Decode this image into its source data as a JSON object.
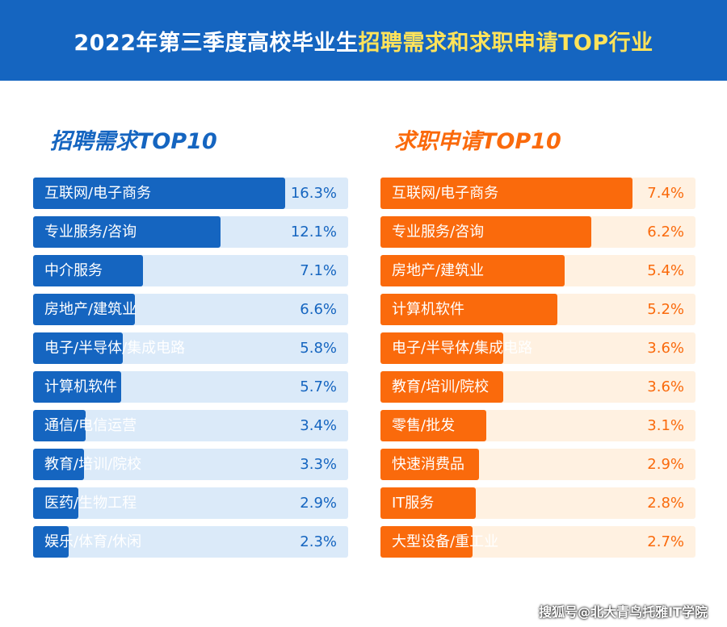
{
  "header": {
    "title_part1": "2022年第三季度高校毕业生",
    "title_part2": "招聘需求和求职申请TOP行业"
  },
  "colors": {
    "header_bg": "#1565c0",
    "header_accent": "#ffe35a",
    "blue": "#1565c0",
    "blue_track": "#dbeaf9",
    "orange": "#fa6a0c",
    "orange_track": "#fff1e1"
  },
  "chart_data": [
    {
      "type": "bar",
      "orientation": "horizontal",
      "title": "招聘需求TOP10",
      "categories": [
        "互联网/电子商务",
        "专业服务/咨询",
        "中介服务",
        "房地产/建筑业",
        "电子/半导体/集成电路",
        "计算机软件",
        "通信/电信运营",
        "教育/培训/院校",
        "医药/生物工程",
        "娱乐/体育/休闲"
      ],
      "values": [
        16.3,
        12.1,
        7.1,
        6.6,
        5.8,
        5.7,
        3.4,
        3.3,
        2.9,
        2.3
      ],
      "value_labels": [
        "16.3%",
        "12.1%",
        "7.1%",
        "6.6%",
        "5.8%",
        "5.7%",
        "3.4%",
        "3.3%",
        "2.9%",
        "2.3%"
      ],
      "unit": "%",
      "bar_color": "#1565c0",
      "track_color": "#dbeaf9",
      "title_color": "#1565c0"
    },
    {
      "type": "bar",
      "orientation": "horizontal",
      "title": "求职申请TOP10",
      "categories": [
        "互联网/电子商务",
        "专业服务/咨询",
        "房地产/建筑业",
        "计算机软件",
        "电子/半导体/集成电路",
        "教育/培训/院校",
        "零售/批发",
        "快速消费品",
        "IT服务",
        "大型设备/重工业"
      ],
      "values": [
        7.4,
        6.2,
        5.4,
        5.2,
        3.6,
        3.6,
        3.1,
        2.9,
        2.8,
        2.7
      ],
      "value_labels": [
        "7.4%",
        "6.2%",
        "5.4%",
        "5.2%",
        "3.6%",
        "3.6%",
        "3.1%",
        "2.9%",
        "2.8%",
        "2.7%"
      ],
      "unit": "%",
      "bar_color": "#fa6a0c",
      "track_color": "#fff1e1",
      "title_color": "#fa6a0c"
    }
  ],
  "footer": {
    "watermark": "搜狐号@北大青鸟托雅IT学院"
  }
}
